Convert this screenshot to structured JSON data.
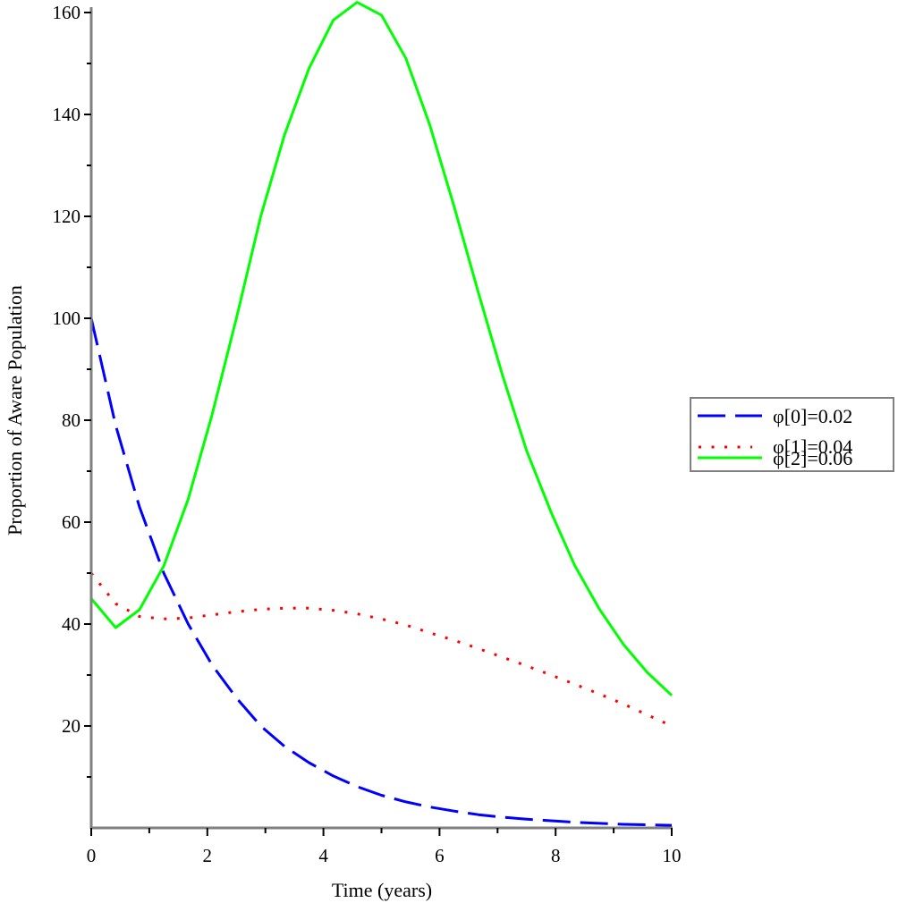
{
  "chart_data": {
    "type": "line",
    "title": "",
    "xlabel": "Time (years)",
    "ylabel": "Proportion of Aware Population",
    "xlim": [
      0,
      10
    ],
    "ylim": [
      0,
      160
    ],
    "grid": false,
    "legend_position": "right",
    "x_ticks": [
      0,
      2,
      4,
      6,
      8,
      10
    ],
    "y_ticks": [
      20,
      40,
      60,
      80,
      100,
      120,
      140,
      160
    ],
    "x": [
      0,
      0.42,
      0.83,
      1.25,
      1.67,
      2.08,
      2.5,
      2.92,
      3.33,
      3.75,
      4.17,
      4.58,
      5.0,
      5.42,
      5.83,
      6.25,
      6.67,
      7.08,
      7.5,
      7.92,
      8.33,
      8.75,
      9.17,
      9.58,
      10
    ],
    "series": [
      {
        "name": "φ[0]=0.02",
        "color": "#0000ff",
        "style": "dashed",
        "values": [
          100,
          79,
          63,
          50,
          40,
          32,
          25.5,
          20,
          16,
          12.8,
          10.2,
          8.1,
          6.4,
          5.1,
          4.1,
          3.3,
          2.6,
          2.1,
          1.7,
          1.4,
          1.1,
          0.9,
          0.7,
          0.6,
          0.5
        ]
      },
      {
        "name": "φ[1]=0.04",
        "color": "#ff0000",
        "style": "dotted",
        "values": [
          50,
          44,
          41.5,
          41,
          41.2,
          41.8,
          42.4,
          42.9,
          43.1,
          43.1,
          42.7,
          42,
          41,
          39.8,
          38.3,
          36.8,
          35.2,
          33.5,
          31.8,
          30,
          28.2,
          26.3,
          24.3,
          22.2,
          20
        ]
      },
      {
        "name": "φ[2]=0.06",
        "color": "#00ff00",
        "style": "solid",
        "values": [
          45,
          39.3,
          42.8,
          51.4,
          64.5,
          81,
          100,
          120,
          136,
          149,
          158.5,
          162,
          159.5,
          151,
          138,
          122,
          105,
          89,
          74,
          62,
          51.5,
          43,
          36,
          30.5,
          26
        ]
      }
    ]
  },
  "legend": {
    "items": [
      {
        "label": "φ[0]=0.02"
      },
      {
        "label": "φ[1]=0.04"
      },
      {
        "label": "φ[2]=0.06"
      }
    ]
  }
}
